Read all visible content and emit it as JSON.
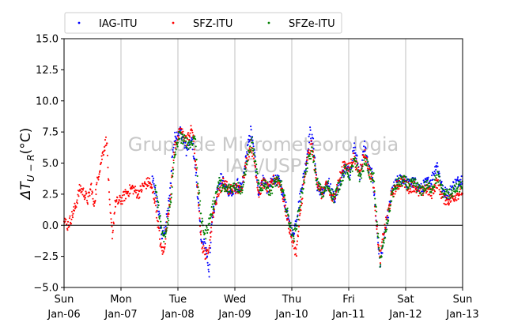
{
  "chart_data": {
    "type": "scatter",
    "title": "",
    "ylabel": "ΔT_{U−R}(°C)",
    "ylabel_parts": {
      "delta": "ΔT",
      "sub": "U − R",
      "unit": "(°C)"
    },
    "xlabel": "",
    "ylim": [
      -5,
      15
    ],
    "xlim": [
      0,
      7
    ],
    "y_ticks": [
      -5,
      -2.5,
      0,
      2.5,
      5,
      7.5,
      10,
      12.5,
      15
    ],
    "y_tick_labels": [
      "−5.0",
      "−2.5",
      "0.0",
      "2.5",
      "5.0",
      "7.5",
      "10.0",
      "12.5",
      "15.0"
    ],
    "x_ticks": [
      0,
      1,
      2,
      3,
      4,
      5,
      6,
      7
    ],
    "x_tick_labels": [
      [
        "Sun",
        "Jan-06"
      ],
      [
        "Mon",
        "Jan-07"
      ],
      [
        "Tue",
        "Jan-08"
      ],
      [
        "Wed",
        "Jan-09"
      ],
      [
        "Thu",
        "Jan-10"
      ],
      [
        "Fri",
        "Jan-11"
      ],
      [
        "Sat",
        "Jan-12"
      ],
      [
        "Sun",
        "Jan-13"
      ]
    ],
    "vertical_grid": true,
    "zero_line": true,
    "legend_placement": "top-center",
    "watermark": [
      "Grupo de Micrometeorologia",
      "IAG/USP"
    ],
    "series": [
      {
        "name": "IAG-ITU",
        "color": "#0000ff",
        "x_start": 1.55,
        "x_end": 7.0,
        "knots": [
          [
            1.55,
            3.8
          ],
          [
            1.65,
            1.5
          ],
          [
            1.72,
            -1.0
          ],
          [
            1.78,
            -0.2
          ],
          [
            1.86,
            2.5
          ],
          [
            1.9,
            5.5
          ],
          [
            1.95,
            7.2
          ],
          [
            2.05,
            7.6
          ],
          [
            2.15,
            6.0
          ],
          [
            2.25,
            6.8
          ],
          [
            2.32,
            4.0
          ],
          [
            2.38,
            0.5
          ],
          [
            2.42,
            -1.5
          ],
          [
            2.48,
            -1.5
          ],
          [
            2.55,
            -3.8
          ],
          [
            2.6,
            0.5
          ],
          [
            2.68,
            2.5
          ],
          [
            2.75,
            3.8
          ],
          [
            2.85,
            3.0
          ],
          [
            2.95,
            2.5
          ],
          [
            3.05,
            3.3
          ],
          [
            3.12,
            2.8
          ],
          [
            3.2,
            5.5
          ],
          [
            3.28,
            7.6
          ],
          [
            3.35,
            5.5
          ],
          [
            3.42,
            2.5
          ],
          [
            3.5,
            3.8
          ],
          [
            3.58,
            2.8
          ],
          [
            3.68,
            3.8
          ],
          [
            3.78,
            3.5
          ],
          [
            3.88,
            1.8
          ],
          [
            3.95,
            0.2
          ],
          [
            4.02,
            -0.8
          ],
          [
            4.1,
            1.0
          ],
          [
            4.18,
            3.3
          ],
          [
            4.25,
            5.0
          ],
          [
            4.32,
            7.5
          ],
          [
            4.38,
            6.5
          ],
          [
            4.45,
            3.0
          ],
          [
            4.55,
            2.5
          ],
          [
            4.65,
            3.5
          ],
          [
            4.75,
            2.0
          ],
          [
            4.85,
            3.5
          ],
          [
            4.95,
            4.8
          ],
          [
            5.02,
            4.2
          ],
          [
            5.1,
            6.3
          ],
          [
            5.2,
            4.0
          ],
          [
            5.28,
            6.5
          ],
          [
            5.35,
            4.5
          ],
          [
            5.42,
            4.0
          ],
          [
            5.5,
            -0.5
          ],
          [
            5.55,
            -3.2
          ],
          [
            5.6,
            -1.5
          ],
          [
            5.68,
            0.5
          ],
          [
            5.76,
            2.8
          ],
          [
            5.85,
            3.5
          ],
          [
            5.95,
            3.8
          ],
          [
            6.05,
            3.3
          ],
          [
            6.15,
            3.5
          ],
          [
            6.25,
            2.8
          ],
          [
            6.35,
            3.4
          ],
          [
            6.45,
            3.6
          ],
          [
            6.55,
            5.0
          ],
          [
            6.65,
            2.8
          ],
          [
            6.75,
            2.5
          ],
          [
            6.85,
            3.3
          ],
          [
            7.0,
            3.8
          ]
        ]
      },
      {
        "name": "SFZ-ITU",
        "color": "#ff0000",
        "x_start": 0.0,
        "x_end": 7.0,
        "knots": [
          [
            0.0,
            0.7
          ],
          [
            0.05,
            -0.1
          ],
          [
            0.12,
            0.5
          ],
          [
            0.2,
            1.5
          ],
          [
            0.28,
            3.0
          ],
          [
            0.35,
            2.6
          ],
          [
            0.42,
            2.0
          ],
          [
            0.48,
            3.2
          ],
          [
            0.52,
            1.5
          ],
          [
            0.6,
            4.0
          ],
          [
            0.68,
            5.8
          ],
          [
            0.75,
            7.0
          ],
          [
            0.8,
            1.5
          ],
          [
            0.85,
            -0.8
          ],
          [
            0.9,
            1.8
          ],
          [
            1.0,
            2.0
          ],
          [
            1.1,
            2.6
          ],
          [
            1.2,
            3.0
          ],
          [
            1.3,
            2.5
          ],
          [
            1.4,
            3.2
          ],
          [
            1.5,
            3.5
          ],
          [
            1.6,
            2.0
          ],
          [
            1.7,
            -1.8
          ],
          [
            1.75,
            -2.2
          ],
          [
            1.82,
            0.5
          ],
          [
            1.88,
            3.0
          ],
          [
            1.95,
            6.5
          ],
          [
            2.05,
            7.6
          ],
          [
            2.15,
            6.8
          ],
          [
            2.25,
            7.8
          ],
          [
            2.32,
            4.5
          ],
          [
            2.38,
            0.5
          ],
          [
            2.43,
            -1.8
          ],
          [
            2.5,
            -2.5
          ],
          [
            2.56,
            -1.2
          ],
          [
            2.62,
            1.0
          ],
          [
            2.7,
            2.5
          ],
          [
            2.8,
            3.5
          ],
          [
            2.9,
            2.8
          ],
          [
            3.0,
            3.0
          ],
          [
            3.1,
            2.8
          ],
          [
            3.2,
            5.0
          ],
          [
            3.28,
            6.5
          ],
          [
            3.35,
            5.0
          ],
          [
            3.42,
            2.5
          ],
          [
            3.5,
            3.5
          ],
          [
            3.6,
            2.8
          ],
          [
            3.7,
            3.8
          ],
          [
            3.8,
            3.3
          ],
          [
            3.88,
            1.5
          ],
          [
            3.95,
            0.0
          ],
          [
            4.02,
            -1.5
          ],
          [
            4.08,
            -2.2
          ],
          [
            4.14,
            0.5
          ],
          [
            4.2,
            3.0
          ],
          [
            4.28,
            5.5
          ],
          [
            4.35,
            6.5
          ],
          [
            4.42,
            4.0
          ],
          [
            4.52,
            2.5
          ],
          [
            4.62,
            3.2
          ],
          [
            4.72,
            2.0
          ],
          [
            4.82,
            3.5
          ],
          [
            4.92,
            5.0
          ],
          [
            5.0,
            4.5
          ],
          [
            5.08,
            5.5
          ],
          [
            5.18,
            4.2
          ],
          [
            5.28,
            5.8
          ],
          [
            5.36,
            4.3
          ],
          [
            5.43,
            3.5
          ],
          [
            5.5,
            -0.5
          ],
          [
            5.55,
            -2.8
          ],
          [
            5.6,
            -1.0
          ],
          [
            5.68,
            0.8
          ],
          [
            5.76,
            2.5
          ],
          [
            5.85,
            3.2
          ],
          [
            5.95,
            3.6
          ],
          [
            6.05,
            3.0
          ],
          [
            6.15,
            3.2
          ],
          [
            6.25,
            2.5
          ],
          [
            6.35,
            3.0
          ],
          [
            6.45,
            2.5
          ],
          [
            6.55,
            3.5
          ],
          [
            6.65,
            2.2
          ],
          [
            6.75,
            2.0
          ],
          [
            6.85,
            2.3
          ],
          [
            7.0,
            2.8
          ]
        ]
      },
      {
        "name": "SFZe-ITU",
        "color": "#008000",
        "x_start": 1.6,
        "x_end": 7.0,
        "knots": [
          [
            1.6,
            3.0
          ],
          [
            1.68,
            0.8
          ],
          [
            1.74,
            -1.2
          ],
          [
            1.8,
            -0.5
          ],
          [
            1.88,
            2.2
          ],
          [
            1.94,
            5.5
          ],
          [
            2.02,
            7.2
          ],
          [
            2.12,
            6.8
          ],
          [
            2.22,
            6.5
          ],
          [
            2.3,
            7.2
          ],
          [
            2.36,
            3.0
          ],
          [
            2.42,
            0.2
          ],
          [
            2.48,
            -0.8
          ],
          [
            2.56,
            0.5
          ],
          [
            2.64,
            2.0
          ],
          [
            2.72,
            3.5
          ],
          [
            2.82,
            2.8
          ],
          [
            2.92,
            3.0
          ],
          [
            3.02,
            3.2
          ],
          [
            3.12,
            2.8
          ],
          [
            3.22,
            5.2
          ],
          [
            3.3,
            6.8
          ],
          [
            3.36,
            5.0
          ],
          [
            3.44,
            2.6
          ],
          [
            3.52,
            3.5
          ],
          [
            3.62,
            2.7
          ],
          [
            3.72,
            3.6
          ],
          [
            3.82,
            3.2
          ],
          [
            3.9,
            1.5
          ],
          [
            3.97,
            0.0
          ],
          [
            4.04,
            -1.0
          ],
          [
            4.12,
            1.0
          ],
          [
            4.2,
            3.2
          ],
          [
            4.28,
            5.0
          ],
          [
            4.36,
            6.0
          ],
          [
            4.44,
            3.5
          ],
          [
            4.54,
            2.5
          ],
          [
            4.64,
            3.2
          ],
          [
            4.74,
            2.2
          ],
          [
            4.84,
            3.3
          ],
          [
            4.94,
            4.5
          ],
          [
            5.02,
            4.0
          ],
          [
            5.1,
            5.2
          ],
          [
            5.2,
            3.8
          ],
          [
            5.3,
            5.3
          ],
          [
            5.38,
            4.0
          ],
          [
            5.44,
            3.8
          ],
          [
            5.5,
            0.0
          ],
          [
            5.55,
            -3.0
          ],
          [
            5.6,
            -1.8
          ],
          [
            5.68,
            0.2
          ],
          [
            5.76,
            2.5
          ],
          [
            5.86,
            3.4
          ],
          [
            5.96,
            3.6
          ],
          [
            6.06,
            3.2
          ],
          [
            6.16,
            3.4
          ],
          [
            6.26,
            2.7
          ],
          [
            6.36,
            3.2
          ],
          [
            6.46,
            3.0
          ],
          [
            6.56,
            4.0
          ],
          [
            6.66,
            2.6
          ],
          [
            6.76,
            2.5
          ],
          [
            6.86,
            2.8
          ],
          [
            7.0,
            3.3
          ]
        ]
      }
    ]
  }
}
